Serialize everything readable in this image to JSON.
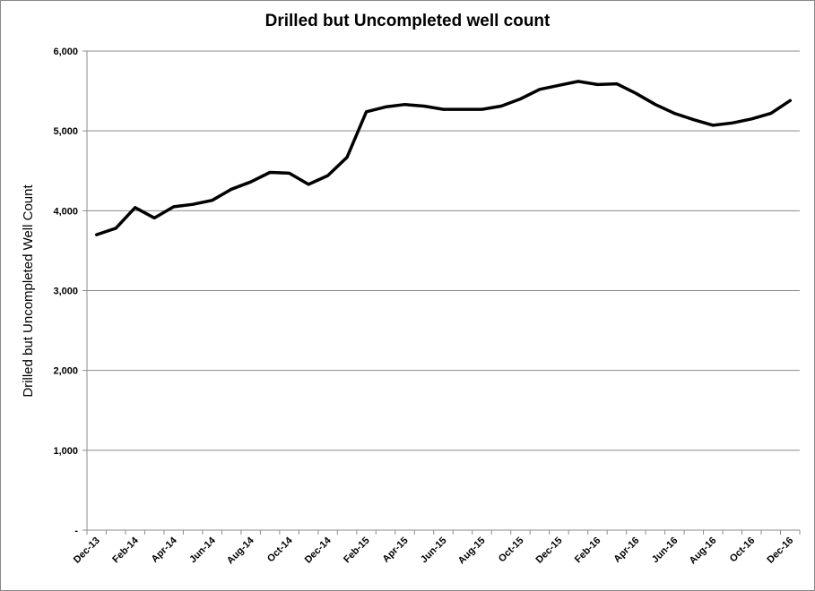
{
  "chart_data": {
    "type": "line",
    "title": "Drilled but Uncompleted well count",
    "xlabel": "",
    "ylabel": "Drilled but Uncompleted Well Count",
    "ylim": [
      0,
      6000
    ],
    "yticks": [
      0,
      1000,
      2000,
      3000,
      4000,
      5000,
      6000
    ],
    "ytick_labels": [
      "-",
      "1,000",
      "2,000",
      "3,000",
      "4,000",
      "5,000",
      "6,000"
    ],
    "grid": true,
    "legend": "none",
    "line_color": "#000000",
    "x_tick_labels": [
      "Dec-13",
      "Feb-14",
      "Apr-14",
      "Jun-14",
      "Aug-14",
      "Oct-14",
      "Dec-14",
      "Feb-15",
      "Apr-15",
      "Jun-15",
      "Aug-15",
      "Oct-15",
      "Dec-15",
      "Feb-16",
      "Apr-16",
      "Jun-16",
      "Aug-16",
      "Oct-16",
      "Dec-16"
    ],
    "x": [
      "Dec-13",
      "Jan-14",
      "Feb-14",
      "Mar-14",
      "Apr-14",
      "May-14",
      "Jun-14",
      "Jul-14",
      "Aug-14",
      "Sep-14",
      "Oct-14",
      "Nov-14",
      "Dec-14",
      "Jan-15",
      "Feb-15",
      "Mar-15",
      "Apr-15",
      "May-15",
      "Jun-15",
      "Jul-15",
      "Aug-15",
      "Sep-15",
      "Oct-15",
      "Nov-15",
      "Dec-15",
      "Jan-16",
      "Feb-16",
      "Mar-16",
      "Apr-16",
      "May-16",
      "Jun-16",
      "Jul-16",
      "Aug-16",
      "Sep-16",
      "Oct-16",
      "Nov-16",
      "Dec-16"
    ],
    "series": [
      {
        "values": [
          3700,
          3780,
          4040,
          3910,
          4050,
          4080,
          4130,
          4270,
          4360,
          4480,
          4470,
          4330,
          4440,
          4670,
          5240,
          5300,
          5330,
          5310,
          5270,
          5270,
          5270,
          5310,
          5400,
          5520,
          5570,
          5620,
          5580,
          5590,
          5470,
          5330,
          5220,
          5140,
          5070,
          5100,
          5150,
          5220,
          5380
        ]
      }
    ]
  }
}
